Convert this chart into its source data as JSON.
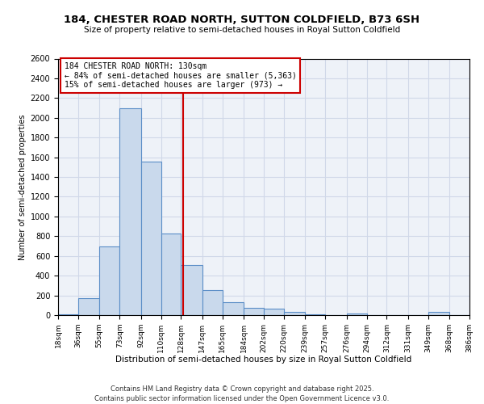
{
  "title1": "184, CHESTER ROAD NORTH, SUTTON COLDFIELD, B73 6SH",
  "title2": "Size of property relative to semi-detached houses in Royal Sutton Coldfield",
  "xlabel": "Distribution of semi-detached houses by size in Royal Sutton Coldfield",
  "ylabel": "Number of semi-detached properties",
  "footer1": "Contains HM Land Registry data © Crown copyright and database right 2025.",
  "footer2": "Contains public sector information licensed under the Open Government Licence v3.0.",
  "annotation_line1": "184 CHESTER ROAD NORTH: 130sqm",
  "annotation_line2": "← 84% of semi-detached houses are smaller (5,363)",
  "annotation_line3": "15% of semi-detached houses are larger (973) →",
  "vline_x": 130,
  "bin_edges": [
    18,
    36,
    55,
    73,
    92,
    110,
    128,
    147,
    165,
    184,
    202,
    220,
    239,
    257,
    276,
    294,
    312,
    331,
    349,
    368,
    386
  ],
  "bar_heights": [
    5,
    175,
    700,
    2100,
    1560,
    830,
    510,
    250,
    130,
    75,
    65,
    30,
    10,
    0,
    20,
    0,
    0,
    0,
    30,
    0
  ],
  "bar_color": "#c9d9ec",
  "bar_edge_color": "#5b8ec7",
  "vline_color": "#cc0000",
  "grid_color": "#d0d8e8",
  "bg_color": "#eef2f8",
  "annotation_box_color": "#cc0000",
  "ylim": [
    0,
    2600
  ],
  "yticks": [
    0,
    200,
    400,
    600,
    800,
    1000,
    1200,
    1400,
    1600,
    1800,
    2000,
    2200,
    2400,
    2600
  ],
  "title1_fontsize": 9.5,
  "title2_fontsize": 7.5,
  "xlabel_fontsize": 7.5,
  "ylabel_fontsize": 7,
  "tick_fontsize": 7,
  "xtick_fontsize": 6.5,
  "footer_fontsize": 6,
  "annotation_fontsize": 7
}
